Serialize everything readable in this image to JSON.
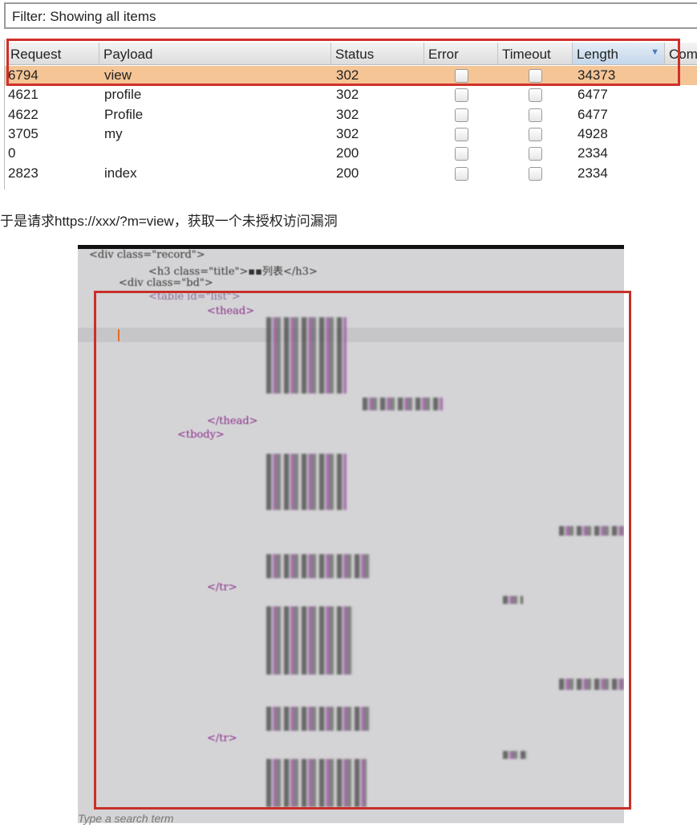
{
  "filter": {
    "label": "Filter: Showing all items"
  },
  "table": {
    "columns": [
      "Request",
      "Payload",
      "Status",
      "Error",
      "Timeout",
      "Length",
      "Com"
    ],
    "sorted_column": "Length",
    "rows": [
      {
        "request": "6794",
        "payload": "view",
        "status": "302",
        "error": false,
        "timeout": false,
        "length": "34373",
        "selected": true
      },
      {
        "request": "4621",
        "payload": "profile",
        "status": "302",
        "error": false,
        "timeout": false,
        "length": "6477"
      },
      {
        "request": "4622",
        "payload": "Profile",
        "status": "302",
        "error": false,
        "timeout": false,
        "length": "6477"
      },
      {
        "request": "3705",
        "payload": "my",
        "status": "302",
        "error": false,
        "timeout": false,
        "length": "4928"
      },
      {
        "request": "0",
        "payload": "",
        "status": "200",
        "error": false,
        "timeout": false,
        "length": "2334"
      },
      {
        "request": "2823",
        "payload": "index",
        "status": "200",
        "error": false,
        "timeout": false,
        "length": "2334"
      }
    ],
    "highlight_color": "#f5c596",
    "annotation_color": "#d0302a"
  },
  "caption": "于是请求https://xxx/?m=view，获取一个未授权访问漏洞",
  "code": {
    "lines": [
      "<div class=\"record\">",
      "<h3 class=\"title\">▪▪列表</h3>",
      "<div class=\"bd\">",
      "<table id=\"list\">",
      "<thead>",
      "</thead>",
      "<tbody>",
      "</tr>",
      "</tr>"
    ],
    "search_placeholder": "Type a search term"
  }
}
